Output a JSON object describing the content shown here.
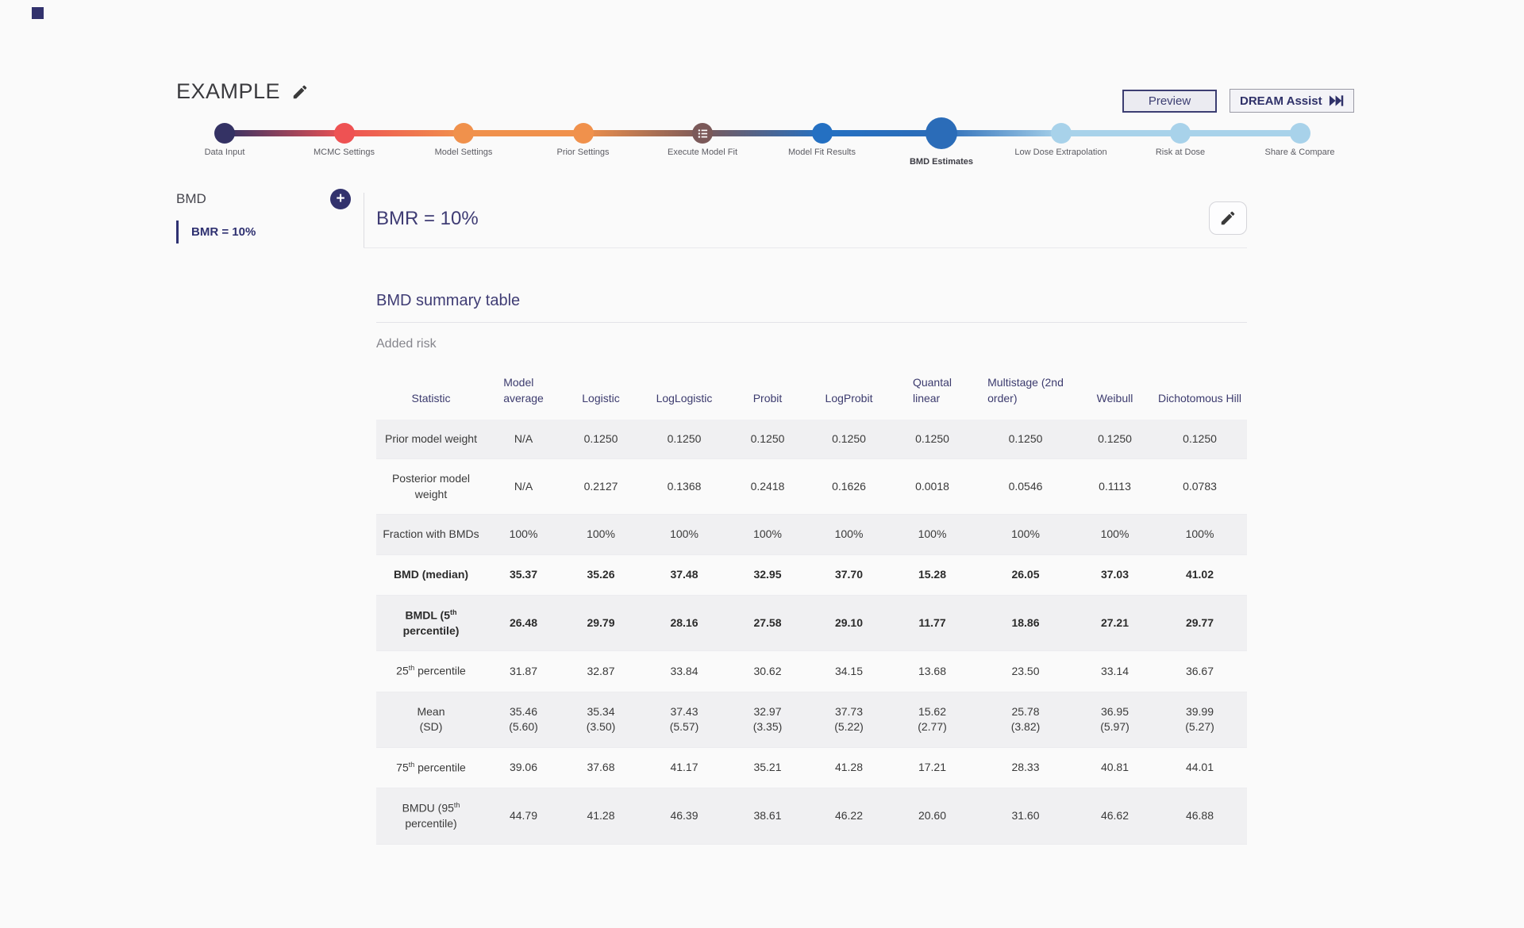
{
  "title": "EXAMPLE",
  "buttons": {
    "preview": "Preview",
    "dream_assist": "DREAM Assist"
  },
  "icons": {
    "title_edit": "pencil-icon",
    "dream_assist": "skip-forward-icon",
    "sidebar_add": "plus-icon",
    "execute_step": "list-icon",
    "main_edit": "pencil-icon"
  },
  "stepper": {
    "steps": [
      {
        "label": "Data Input",
        "color": "#343264"
      },
      {
        "label": "MCMC Settings",
        "color": "#ee5253"
      },
      {
        "label": "Model Settings",
        "color": "#f0914c"
      },
      {
        "label": "Prior Settings",
        "color": "#f0914c"
      },
      {
        "label": "Execute Model Fit",
        "color": "#7b5959",
        "icon": "list-icon"
      },
      {
        "label": "Model Fit Results",
        "color": "#2470c2"
      },
      {
        "label": "BMD Estimates",
        "color": "#2b6cb8",
        "active": true
      },
      {
        "label": "Low Dose Extrapolation",
        "color": "#a8d2ea"
      },
      {
        "label": "Risk at Dose",
        "color": "#a8d2ea"
      },
      {
        "label": "Share & Compare",
        "color": "#a8d2ea"
      }
    ]
  },
  "sidebar": {
    "group_label": "BMD",
    "add_label": "+",
    "items": [
      {
        "label": "BMR = 10%",
        "selected": true
      }
    ]
  },
  "main": {
    "heading": "BMR = 10%",
    "section_title": "BMD summary table",
    "risk_type": "Added risk"
  },
  "table": {
    "columns": [
      "Statistic",
      "Model\naverage",
      "Logistic",
      "LogLogistic",
      "Probit",
      "LogProbit",
      "Quantal\nlinear",
      "Multistage (2nd\norder)",
      "Weibull",
      "Dichotomous Hill"
    ],
    "rows": [
      {
        "label": "Prior model weight",
        "values": [
          "N/A",
          "0.1250",
          "0.1250",
          "0.1250",
          "0.1250",
          "0.1250",
          "0.1250",
          "0.1250",
          "0.1250"
        ]
      },
      {
        "label": "Posterior model weight",
        "values": [
          "N/A",
          "0.2127",
          "0.1368",
          "0.2418",
          "0.1626",
          "0.0018",
          "0.0546",
          "0.1113",
          "0.0783"
        ]
      },
      {
        "label": "Fraction with BMDs",
        "values": [
          "100%",
          "100%",
          "100%",
          "100%",
          "100%",
          "100%",
          "100%",
          "100%",
          "100%"
        ]
      },
      {
        "label": "BMD (median)",
        "bold": true,
        "values": [
          "35.37",
          "35.26",
          "37.48",
          "32.95",
          "37.70",
          "15.28",
          "26.05",
          "37.03",
          "41.02"
        ]
      },
      {
        "label": "BMDL (5{th}\npercentile)",
        "bold": true,
        "values": [
          "26.48",
          "29.79",
          "28.16",
          "27.58",
          "29.10",
          "11.77",
          "18.86",
          "27.21",
          "29.77"
        ]
      },
      {
        "label": "25{th} percentile",
        "values": [
          "31.87",
          "32.87",
          "33.84",
          "30.62",
          "34.15",
          "13.68",
          "23.50",
          "33.14",
          "36.67"
        ]
      },
      {
        "label": "Mean\n(SD)",
        "values": [
          "35.46\n(5.60)",
          "35.34\n(3.50)",
          "37.43\n(5.57)",
          "32.97\n(3.35)",
          "37.73\n(5.22)",
          "15.62\n(2.77)",
          "25.78\n(3.82)",
          "36.95\n(5.97)",
          "39.99\n(5.27)"
        ]
      },
      {
        "label": "75{th} percentile",
        "values": [
          "39.06",
          "37.68",
          "41.17",
          "35.21",
          "41.28",
          "17.21",
          "28.33",
          "40.81",
          "44.01"
        ]
      },
      {
        "label": "BMDU (95{th}\npercentile)",
        "values": [
          "44.79",
          "41.28",
          "46.39",
          "38.61",
          "46.22",
          "20.60",
          "31.60",
          "46.62",
          "46.88"
        ]
      }
    ]
  },
  "colors": {
    "accent_navy": "#32326d",
    "heading_indigo": "#3f3c74",
    "table_header": "#3c3b6e",
    "stripe_row": "#f0f0f2",
    "active_step_blue": "#2b6cb8",
    "future_step_blue": "#a8d2ea"
  }
}
